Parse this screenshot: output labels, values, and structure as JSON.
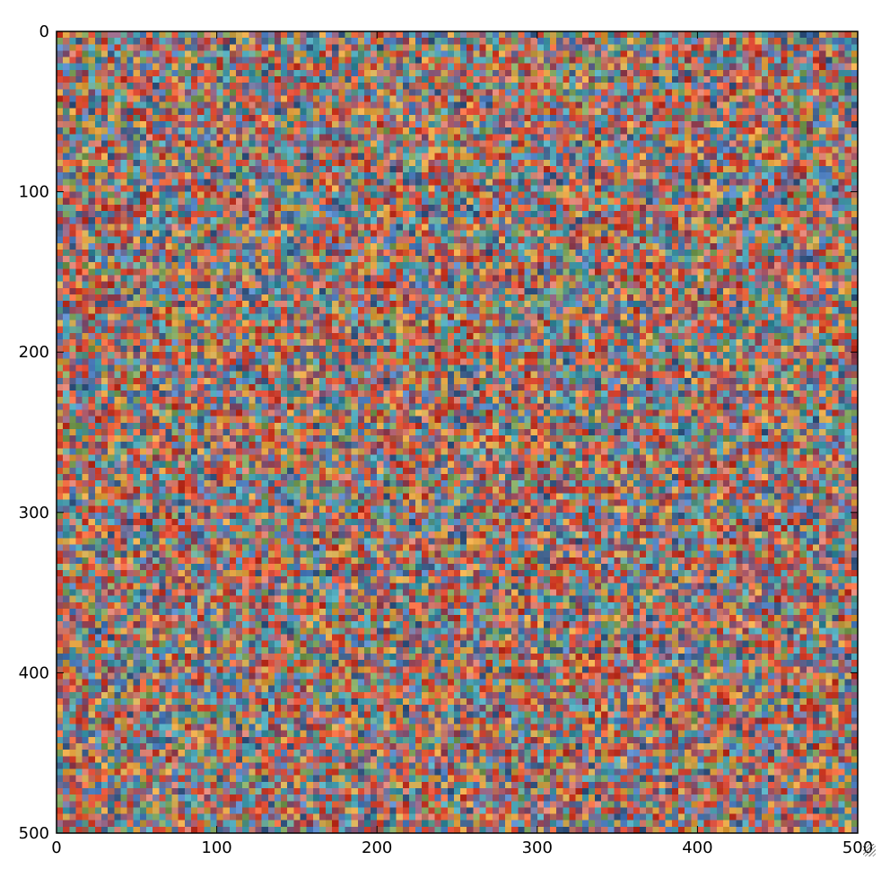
{
  "chart_data": {
    "type": "heatmap",
    "title": "",
    "xlabel": "",
    "ylabel": "",
    "xlim": [
      0,
      500
    ],
    "ylim": [
      500,
      0
    ],
    "y_inverted": true,
    "x_ticks": [
      0,
      100,
      200,
      300,
      400,
      500
    ],
    "y_ticks": [
      0,
      100,
      200,
      300,
      400,
      500
    ],
    "x_tick_labels": [
      "0",
      "100",
      "200",
      "300",
      "400",
      "500"
    ],
    "y_tick_labels": [
      "0",
      "100",
      "200",
      "300",
      "400",
      "500"
    ],
    "grid": false,
    "legend": "none",
    "colormap": "rgb",
    "pixel_grid": [
      125,
      125
    ],
    "palette": [
      "#d9452f",
      "#e8653a",
      "#c43a2a",
      "#3d8fa0",
      "#4aa3b5",
      "#6b6f9a",
      "#8a5a7a",
      "#c9a24a",
      "#e0a040",
      "#7ca05a",
      "#4f7fbf",
      "#b56a5a",
      "#9a4a5c",
      "#3e5f8a",
      "#d2786a",
      "#5f9f8f"
    ]
  }
}
